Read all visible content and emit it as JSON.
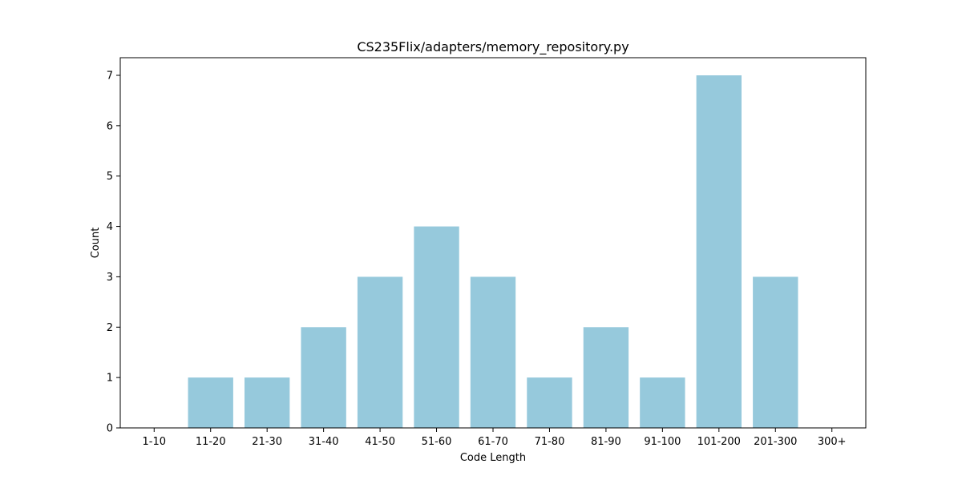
{
  "chart_data": {
    "type": "bar",
    "title": "CS235Flix/adapters/memory_repository.py",
    "xlabel": "Code Length",
    "ylabel": "Count",
    "categories": [
      "1-10",
      "11-20",
      "21-30",
      "31-40",
      "41-50",
      "51-60",
      "61-70",
      "71-80",
      "81-90",
      "91-100",
      "101-200",
      "201-300",
      "300+"
    ],
    "values": [
      0,
      1,
      1,
      2,
      3,
      4,
      3,
      1,
      2,
      1,
      7,
      3,
      0
    ],
    "ylim": [
      0,
      7.35
    ],
    "yticks": [
      0,
      1,
      2,
      3,
      4,
      5,
      6,
      7
    ],
    "bar_color": "#96c9dc",
    "grid": false
  }
}
